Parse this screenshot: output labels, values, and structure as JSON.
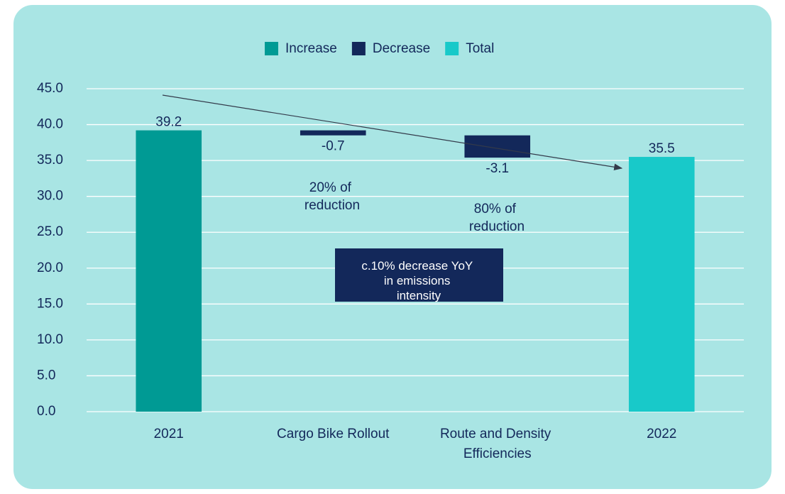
{
  "chart_data": {
    "type": "waterfall",
    "categories": [
      "2021",
      "Cargo Bike Rollout",
      "Route and Density Efficiencies",
      "2022"
    ],
    "values": [
      39.2,
      -0.7,
      -3.1,
      35.5
    ],
    "bar_legend": [
      0,
      1,
      1,
      2
    ],
    "legend_items": [
      {
        "name": "Increase",
        "color": "#009a94"
      },
      {
        "name": "Decrease",
        "color": "#13285a"
      },
      {
        "name": "Total",
        "color": "#18c9c9"
      }
    ],
    "ylim": [
      0,
      45
    ],
    "yticks": [
      {
        "value": 0,
        "label": "0.0"
      },
      {
        "value": 5,
        "label": "5.0"
      },
      {
        "value": 10,
        "label": "10.0"
      },
      {
        "value": 15,
        "label": "15.0"
      },
      {
        "value": 20,
        "label": "20.0"
      },
      {
        "value": 25,
        "label": "25.0"
      },
      {
        "value": 30,
        "label": "30.0"
      },
      {
        "value": 35,
        "label": "35.0"
      },
      {
        "value": 40,
        "label": "40.0"
      },
      {
        "value": 45,
        "label": "45.0"
      }
    ],
    "grid": true,
    "legend_position": "top",
    "annotations": [
      "20% of reduction",
      "80% of reduction",
      "c.10% decrease YoY in emissions intensity"
    ]
  }
}
